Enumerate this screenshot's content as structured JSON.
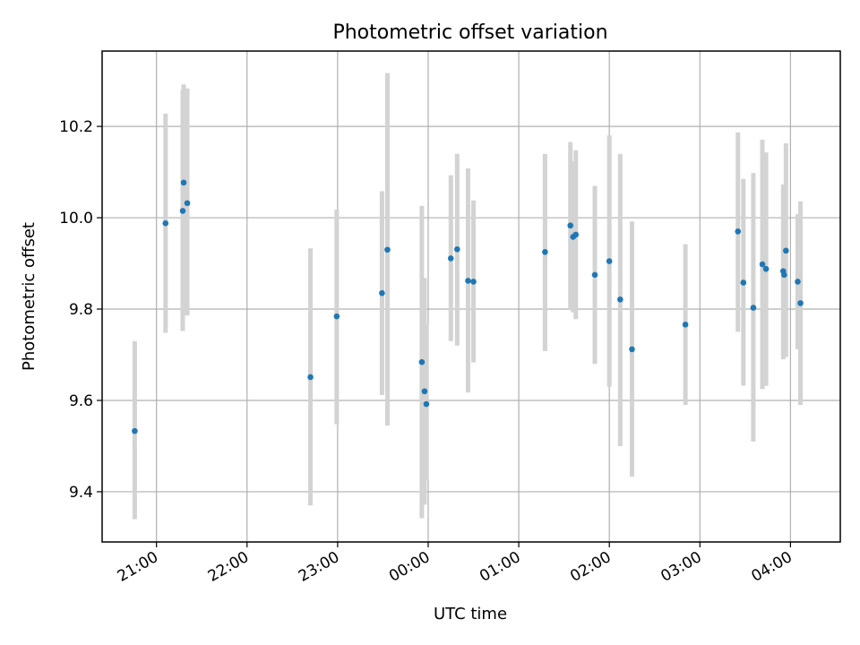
{
  "chart_data": {
    "type": "scatter",
    "title": "Photometric offset variation",
    "xlabel": "UTC time",
    "ylabel": "Photometric offset",
    "grid": true,
    "xlim": [
      20.4,
      28.55
    ],
    "ylim": [
      9.29,
      10.365
    ],
    "x_ticks": [
      {
        "value": 21,
        "label": "21:00"
      },
      {
        "value": 22,
        "label": "22:00"
      },
      {
        "value": 23,
        "label": "23:00"
      },
      {
        "value": 24,
        "label": "00:00"
      },
      {
        "value": 25,
        "label": "01:00"
      },
      {
        "value": 26,
        "label": "02:00"
      },
      {
        "value": 27,
        "label": "03:00"
      },
      {
        "value": 28,
        "label": "04:00"
      }
    ],
    "y_ticks": [
      {
        "value": 9.4,
        "label": "9.4"
      },
      {
        "value": 9.6,
        "label": "9.6"
      },
      {
        "value": 9.8,
        "label": "9.8"
      },
      {
        "value": 10.0,
        "label": "10.0"
      },
      {
        "value": 10.2,
        "label": "10.2"
      }
    ],
    "marker_color": "#1f77b4",
    "errorbar_color": "#d3d3d3",
    "points": [
      {
        "x": 20.76,
        "y": 9.533,
        "ylow": 9.34,
        "yhigh": 9.73
      },
      {
        "x": 21.1,
        "y": 9.988,
        "ylow": 9.748,
        "yhigh": 10.228
      },
      {
        "x": 21.29,
        "y": 10.015,
        "ylow": 9.752,
        "yhigh": 10.28
      },
      {
        "x": 21.3,
        "y": 10.077,
        "ylow": 9.8,
        "yhigh": 10.292
      },
      {
        "x": 21.34,
        "y": 10.032,
        "ylow": 9.786,
        "yhigh": 10.283
      },
      {
        "x": 22.7,
        "y": 9.651,
        "ylow": 9.37,
        "yhigh": 9.933
      },
      {
        "x": 22.99,
        "y": 9.784,
        "ylow": 9.548,
        "yhigh": 10.018
      },
      {
        "x": 23.49,
        "y": 9.835,
        "ylow": 9.612,
        "yhigh": 10.058
      },
      {
        "x": 23.55,
        "y": 9.93,
        "ylow": 9.545,
        "yhigh": 10.317
      },
      {
        "x": 23.93,
        "y": 9.684,
        "ylow": 9.342,
        "yhigh": 10.026
      },
      {
        "x": 23.96,
        "y": 9.62,
        "ylow": 9.372,
        "yhigh": 9.868
      },
      {
        "x": 23.98,
        "y": 9.592,
        "ylow": 9.425,
        "yhigh": 9.766
      },
      {
        "x": 24.25,
        "y": 9.911,
        "ylow": 9.73,
        "yhigh": 10.093
      },
      {
        "x": 24.32,
        "y": 9.931,
        "ylow": 9.72,
        "yhigh": 10.14
      },
      {
        "x": 24.44,
        "y": 9.862,
        "ylow": 9.617,
        "yhigh": 10.108
      },
      {
        "x": 24.5,
        "y": 9.86,
        "ylow": 9.683,
        "yhigh": 10.038
      },
      {
        "x": 25.29,
        "y": 9.925,
        "ylow": 9.708,
        "yhigh": 10.14
      },
      {
        "x": 25.57,
        "y": 9.983,
        "ylow": 9.8,
        "yhigh": 10.166
      },
      {
        "x": 25.6,
        "y": 9.958,
        "ylow": 9.793,
        "yhigh": 10.123
      },
      {
        "x": 25.63,
        "y": 9.963,
        "ylow": 9.778,
        "yhigh": 10.148
      },
      {
        "x": 25.84,
        "y": 9.875,
        "ylow": 9.68,
        "yhigh": 10.07
      },
      {
        "x": 26.0,
        "y": 9.905,
        "ylow": 9.63,
        "yhigh": 10.18
      },
      {
        "x": 26.12,
        "y": 9.821,
        "ylow": 9.5,
        "yhigh": 10.14
      },
      {
        "x": 26.25,
        "y": 9.712,
        "ylow": 9.433,
        "yhigh": 9.992
      },
      {
        "x": 26.84,
        "y": 9.766,
        "ylow": 9.59,
        "yhigh": 9.942
      },
      {
        "x": 27.42,
        "y": 9.97,
        "ylow": 9.75,
        "yhigh": 10.187
      },
      {
        "x": 27.48,
        "y": 9.858,
        "ylow": 9.632,
        "yhigh": 10.085
      },
      {
        "x": 27.59,
        "y": 9.803,
        "ylow": 9.51,
        "yhigh": 10.098
      },
      {
        "x": 27.69,
        "y": 9.898,
        "ylow": 9.625,
        "yhigh": 10.171
      },
      {
        "x": 27.73,
        "y": 9.888,
        "ylow": 9.632,
        "yhigh": 10.143
      },
      {
        "x": 27.92,
        "y": 9.883,
        "ylow": 9.69,
        "yhigh": 10.073
      },
      {
        "x": 27.93,
        "y": 9.875,
        "ylow": 9.695,
        "yhigh": 10.055
      },
      {
        "x": 27.95,
        "y": 9.928,
        "ylow": 9.695,
        "yhigh": 10.163
      },
      {
        "x": 28.08,
        "y": 9.86,
        "ylow": 9.712,
        "yhigh": 10.008
      },
      {
        "x": 28.11,
        "y": 9.813,
        "ylow": 9.59,
        "yhigh": 10.036
      }
    ]
  }
}
